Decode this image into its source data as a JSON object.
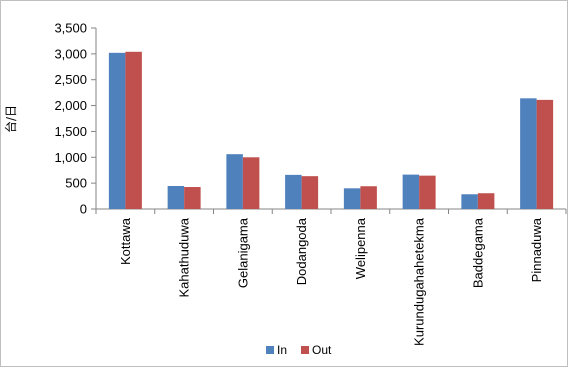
{
  "chart_data": {
    "type": "bar",
    "ylabel": "台/日",
    "xlabel": "",
    "title": "",
    "ylim": [
      0,
      3500
    ],
    "yticks": [
      0,
      500,
      1000,
      1500,
      2000,
      2500,
      3000,
      3500
    ],
    "ytick_labels": [
      "0",
      "500",
      "1,000",
      "1,500",
      "2,000",
      "2,500",
      "3,000",
      "3,500"
    ],
    "categories": [
      "Kottawa",
      "Kahathuduwa",
      "Gelanigama",
      "Dodangoda",
      "Welipenna",
      "Kurundugahahetekma",
      "Baddegama",
      "Pinnaduwa"
    ],
    "series": [
      {
        "name": "In",
        "color": "#4f81bd",
        "values": [
          3020,
          445,
          1060,
          660,
          400,
          665,
          285,
          2140
        ]
      },
      {
        "name": "Out",
        "color": "#c0504d",
        "values": [
          3040,
          425,
          1000,
          635,
          440,
          645,
          305,
          2110
        ]
      }
    ],
    "grid": false,
    "legend": "bottom"
  }
}
